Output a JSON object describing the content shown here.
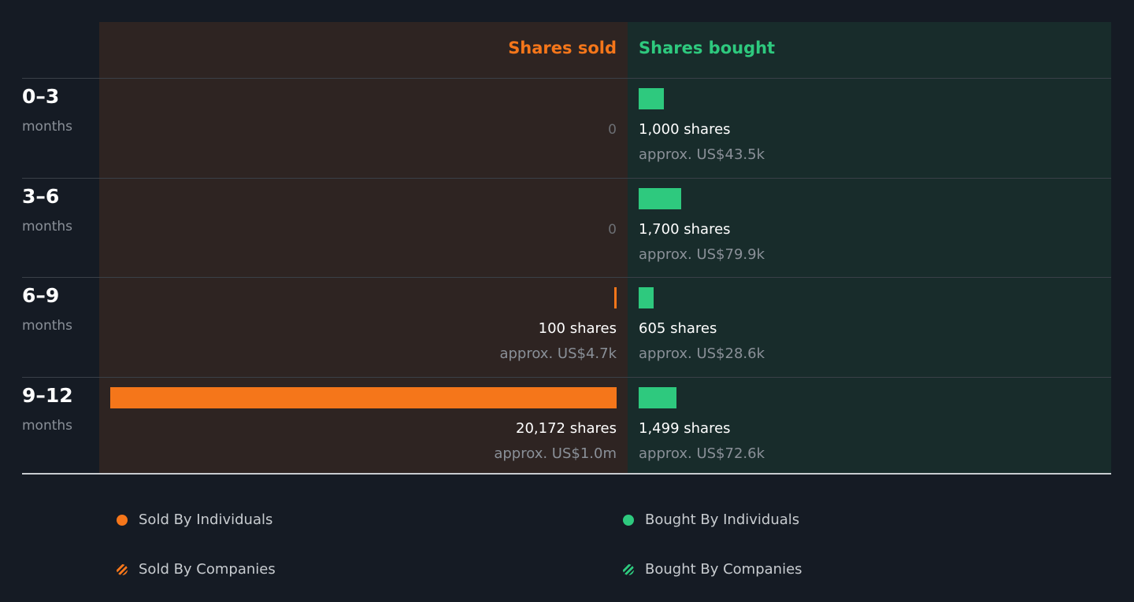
{
  "headers": {
    "sold": "Shares sold",
    "bought": "Shares bought"
  },
  "colors": {
    "sold": "#f5761a",
    "bought": "#2ec97e",
    "sold_panel": "#2e2422",
    "bought_panel": "#182c2b"
  },
  "chart_data": {
    "type": "bar",
    "categories": [
      "0–3 months",
      "3–6 months",
      "6–9 months",
      "9–12 months"
    ],
    "series": [
      {
        "name": "Shares sold",
        "values": [
          0,
          0,
          100,
          20172
        ]
      },
      {
        "name": "Shares bought",
        "values": [
          1000,
          1700,
          605,
          1499
        ]
      }
    ],
    "rows": [
      {
        "period": "0–3",
        "unit": "months",
        "sold": 0,
        "sold_label": "0",
        "sold_approx": "",
        "bought": 1000,
        "bought_label": "1,000 shares",
        "bought_approx": "approx. US$43.5k"
      },
      {
        "period": "3–6",
        "unit": "months",
        "sold": 0,
        "sold_label": "0",
        "sold_approx": "",
        "bought": 1700,
        "bought_label": "1,700 shares",
        "bought_approx": "approx. US$79.9k"
      },
      {
        "period": "6–9",
        "unit": "months",
        "sold": 100,
        "sold_label": "100 shares",
        "sold_approx": "approx. US$4.7k",
        "bought": 605,
        "bought_label": "605 shares",
        "bought_approx": "approx. US$28.6k"
      },
      {
        "period": "9–12",
        "unit": "months",
        "sold": 20172,
        "sold_label": "20,172 shares",
        "sold_approx": "approx. US$1.0m",
        "bought": 1499,
        "bought_label": "1,499 shares",
        "bought_approx": "approx. US$72.6k"
      }
    ]
  },
  "legend": [
    {
      "label": "Sold By Individuals",
      "style": "dot",
      "color": "#f5761a"
    },
    {
      "label": "Bought By Individuals",
      "style": "dot",
      "color": "#2ec97e"
    },
    {
      "label": "Sold By Companies",
      "style": "hatch",
      "color": "#f5761a"
    },
    {
      "label": "Bought By Companies",
      "style": "hatch",
      "color": "#2ec97e"
    }
  ]
}
